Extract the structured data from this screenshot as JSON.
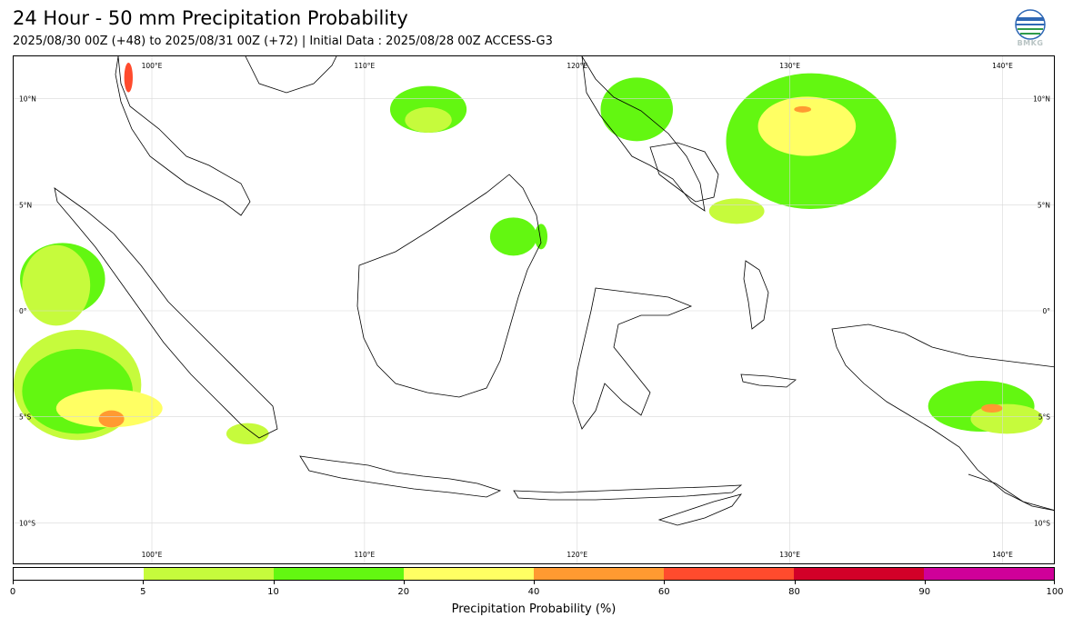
{
  "header": {
    "title": "24 Hour - 50 mm Precipitation Probability",
    "subtitle": "2025/08/30 00Z (+48) to 2025/08/31 00Z (+72) | Initial Data : 2025/08/28 00Z ACCESS-G3",
    "logo_text": "BMKG"
  },
  "map": {
    "lon_labels": [
      "100°E",
      "110°E",
      "120°E",
      "130°E",
      "140°E"
    ],
    "lat_labels": [
      "10°N",
      "5°N",
      "0°",
      "5°S",
      "10°S"
    ],
    "lon_values": [
      100,
      110,
      120,
      130,
      140
    ],
    "lat_values": [
      10,
      5,
      0,
      -5,
      -10
    ],
    "extent": {
      "lon_min": 93.5,
      "lon_max": 142.5,
      "lat_min": -12.0,
      "lat_max": 12.0
    }
  },
  "colorbar": {
    "title": "Precipitation Probability (%)",
    "ticks": [
      "0",
      "5",
      "10",
      "20",
      "40",
      "60",
      "80",
      "90",
      "100"
    ],
    "colors": [
      "#ffffff",
      "#c6fb3c",
      "#63f711",
      "#ffff63",
      "#ff9a31",
      "#ff4b2d",
      "#d20028",
      "#cf0099"
    ]
  },
  "regions": [
    {
      "level": 1,
      "lon": 96.5,
      "lat": -3.5,
      "rx": 3.0,
      "ry": 2.6
    },
    {
      "level": 2,
      "lon": 96.5,
      "lat": -3.8,
      "rx": 2.6,
      "ry": 2.0
    },
    {
      "level": 3,
      "lon": 98.0,
      "lat": -4.6,
      "rx": 2.5,
      "ry": 0.9
    },
    {
      "level": 4,
      "lon": 98.1,
      "lat": -5.1,
      "rx": 0.6,
      "ry": 0.4
    },
    {
      "level": 2,
      "lon": 95.8,
      "lat": 1.5,
      "rx": 2.0,
      "ry": 1.7
    },
    {
      "level": 1,
      "lon": 95.5,
      "lat": 1.2,
      "rx": 1.6,
      "ry": 1.9
    },
    {
      "level": 1,
      "lon": 104.5,
      "lat": -5.8,
      "rx": 1.0,
      "ry": 0.5
    },
    {
      "level": 2,
      "lon": 113.0,
      "lat": 9.5,
      "rx": 1.8,
      "ry": 1.1
    },
    {
      "level": 1,
      "lon": 113.0,
      "lat": 9.0,
      "rx": 1.1,
      "ry": 0.6
    },
    {
      "level": 2,
      "lon": 117.0,
      "lat": 3.5,
      "rx": 1.1,
      "ry": 0.9
    },
    {
      "level": 2,
      "lon": 122.8,
      "lat": 9.5,
      "rx": 1.7,
      "ry": 1.5
    },
    {
      "level": 2,
      "lon": 131.0,
      "lat": 8.0,
      "rx": 4.0,
      "ry": 3.2
    },
    {
      "level": 3,
      "lon": 130.8,
      "lat": 8.7,
      "rx": 2.3,
      "ry": 1.4
    },
    {
      "level": 4,
      "lon": 130.6,
      "lat": 9.5,
      "rx": 0.4,
      "ry": 0.15
    },
    {
      "level": 1,
      "lon": 127.5,
      "lat": 4.7,
      "rx": 1.3,
      "ry": 0.6
    },
    {
      "level": 2,
      "lon": 139.0,
      "lat": -4.5,
      "rx": 2.5,
      "ry": 1.2
    },
    {
      "level": 1,
      "lon": 140.2,
      "lat": -5.1,
      "rx": 1.7,
      "ry": 0.7
    },
    {
      "level": 4,
      "lon": 139.5,
      "lat": -4.6,
      "rx": 0.5,
      "ry": 0.2
    },
    {
      "level": 5,
      "lon": 98.9,
      "lat": 11.0,
      "rx": 0.2,
      "ry": 0.7
    },
    {
      "level": 2,
      "lon": 118.3,
      "lat": 3.5,
      "rx": 0.3,
      "ry": 0.6
    }
  ]
}
